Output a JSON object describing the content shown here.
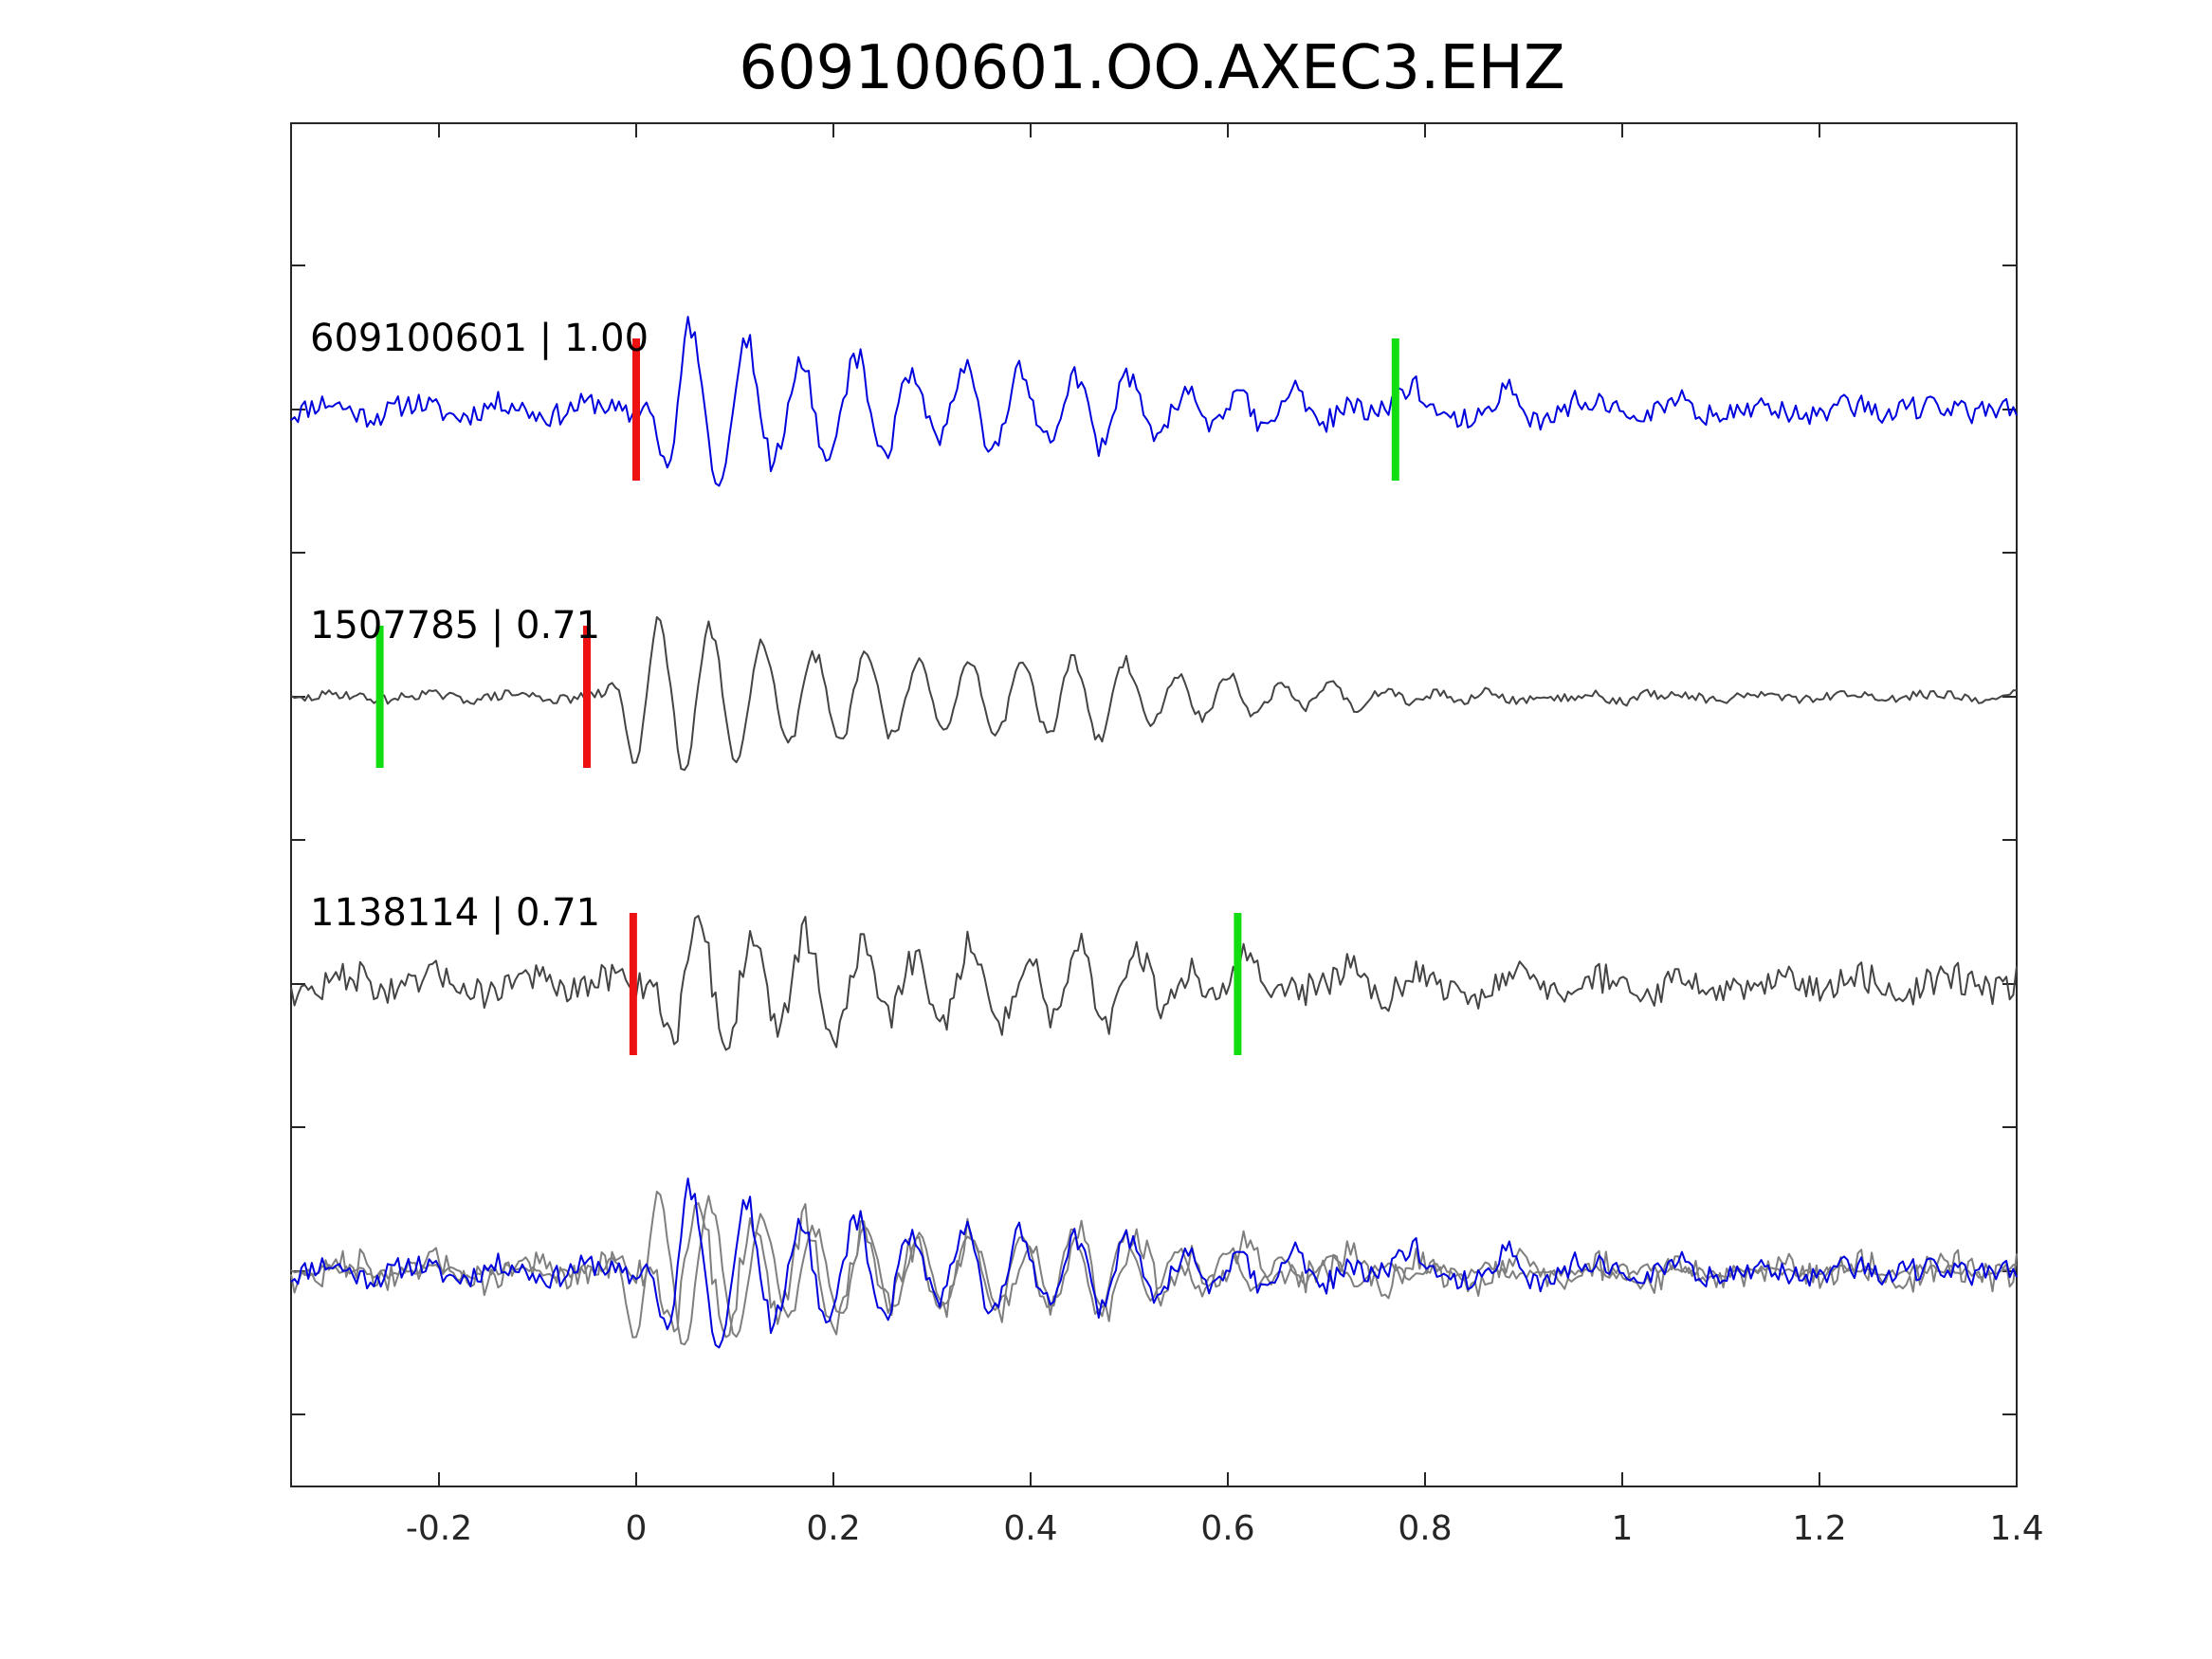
{
  "chart_data": {
    "type": "line",
    "title": "609100601.OO.AXEC3.EHZ",
    "xlabel": "",
    "ylabel": "",
    "xlim": [
      -0.35,
      1.4
    ],
    "xticks": [
      -0.2,
      0,
      0.2,
      0.4,
      0.6,
      0.8,
      1,
      1.2,
      1.4
    ],
    "xtick_labels": [
      "-0.2",
      "0",
      "0.2",
      "0.4",
      "0.6",
      "0.8",
      "1",
      "1.2",
      "1.4"
    ],
    "ytick_labels_shown": false,
    "grid": false,
    "legend": "none",
    "colors": {
      "master": "#0000dd",
      "neighbor": "#444444",
      "overlay_neighbor": "#7f7f7f",
      "p_pick": "#ee1111",
      "s_pick": "#11dd11"
    },
    "traces": [
      {
        "label": "609100601 | 1.00",
        "event_id": "609100601",
        "correlation": 1.0,
        "color": "#0000dd",
        "p_pick": 0.0,
        "s_pick": 0.77
      },
      {
        "label": "1507785 | 0.71",
        "event_id": "1507785",
        "correlation": 0.71,
        "color": "#444444",
        "p_pick": -0.05,
        "s_pick": -0.26
      },
      {
        "label": "1138114 | 0.71",
        "event_id": "1138114",
        "correlation": 0.71,
        "color": "#444444",
        "p_pick": -0.003,
        "s_pick": 0.61
      }
    ],
    "overlay": {
      "description": "all traces overlaid",
      "series": [
        "609100601",
        "1507785",
        "1138114"
      ]
    }
  }
}
